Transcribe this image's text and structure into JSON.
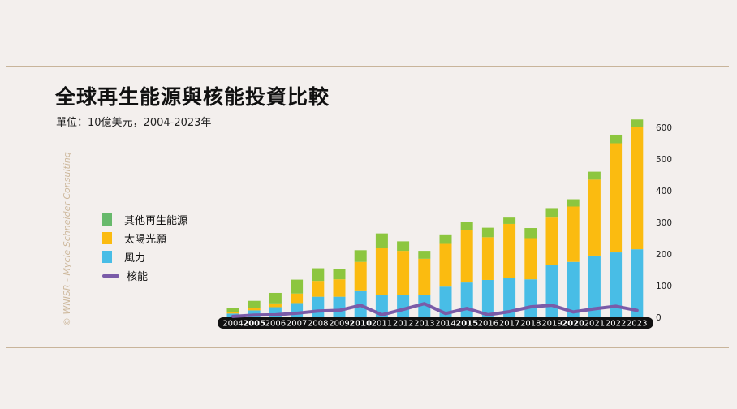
{
  "title": "全球再生能源與核能投資比較",
  "subtitle": "單位：10億美元，2004-2023年",
  "credit": "© WNISR - Mycle Schneider Consulting",
  "legend": [
    {
      "label": "其他再生能源",
      "color": "#67b96b",
      "kind": "box"
    },
    {
      "label": "太陽光願",
      "color": "#fbbb10",
      "kind": "box"
    },
    {
      "label": "風力",
      "color": "#48bde6",
      "kind": "box"
    },
    {
      "label": "核能",
      "color": "#7a5ba8",
      "kind": "line"
    }
  ],
  "colors": {
    "other": "#8cc63f",
    "solar": "#fbbb10",
    "wind": "#48bde6",
    "nuclear": "#7a5ba8",
    "axis_band": "#111111"
  },
  "chart_data": {
    "type": "bar",
    "stacked": true,
    "ylim": [
      0,
      600
    ],
    "yticks": [
      0,
      100,
      200,
      300,
      400,
      500,
      600
    ],
    "y_axis_side": "right",
    "grid": false,
    "legend_position": "left",
    "categories": [
      "2004",
      "2005",
      "2006",
      "2007",
      "2008",
      "2009",
      "2010",
      "2011",
      "2012",
      "2013",
      "2014",
      "2015",
      "2016",
      "2017",
      "2018",
      "2019",
      "2020",
      "2021",
      "2022",
      "2023"
    ],
    "bold_categories": [
      "2005",
      "2010",
      "2015",
      "2020"
    ],
    "series": [
      {
        "name": "風力",
        "key": "wind",
        "values": [
          12,
          22,
          32,
          45,
          65,
          65,
          85,
          70,
          70,
          70,
          97,
          110,
          118,
          125,
          120,
          165,
          175,
          195,
          205,
          215
        ]
      },
      {
        "name": "太陽光願",
        "key": "solar",
        "values": [
          5,
          8,
          12,
          30,
          50,
          55,
          90,
          150,
          140,
          115,
          135,
          165,
          135,
          170,
          130,
          150,
          175,
          240,
          345,
          385
        ]
      },
      {
        "name": "其他再生能源",
        "key": "other",
        "values": [
          13,
          22,
          33,
          44,
          40,
          33,
          37,
          45,
          30,
          25,
          30,
          25,
          30,
          20,
          32,
          30,
          23,
          25,
          27,
          25
        ]
      },
      {
        "name": "核能",
        "key": "nuclear",
        "type": "line",
        "values": [
          3,
          7,
          8,
          13,
          20,
          22,
          38,
          8,
          25,
          43,
          12,
          28,
          8,
          18,
          33,
          38,
          17,
          27,
          35,
          22
        ]
      }
    ]
  }
}
